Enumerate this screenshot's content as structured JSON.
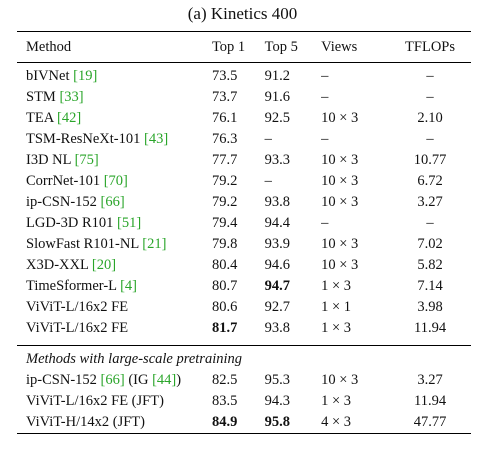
{
  "caption": "(a) Kinetics 400",
  "columns": [
    "Method",
    "Top 1",
    "Top 5",
    "Views",
    "TFLOPs"
  ],
  "rows": [
    {
      "name": "bIVNet",
      "ref": "[19]",
      "top1": "73.5",
      "top5": "91.2",
      "views": "–",
      "tflops": "–"
    },
    {
      "name": "STM",
      "ref": "[33]",
      "top1": "73.7",
      "top5": "91.6",
      "views": "–",
      "tflops": "–"
    },
    {
      "name": "TEA",
      "ref": "[42]",
      "top1": "76.1",
      "top5": "92.5",
      "views": "10 × 3",
      "tflops": "2.10"
    },
    {
      "name": "TSM-ResNeXt-101",
      "ref": "[43]",
      "top1": "76.3",
      "top5": "–",
      "views": "–",
      "tflops": "–"
    },
    {
      "name": "I3D NL",
      "ref": "[75]",
      "top1": "77.7",
      "top5": "93.3",
      "views": "10 × 3",
      "tflops": "10.77"
    },
    {
      "name": "CorrNet-101",
      "ref": "[70]",
      "top1": "79.2",
      "top5": "–",
      "views": "10 × 3",
      "tflops": "6.72"
    },
    {
      "name": "ip-CSN-152",
      "ref": "[66]",
      "top1": "79.2",
      "top5": "93.8",
      "views": "10 × 3",
      "tflops": "3.27"
    },
    {
      "name": "LGD-3D R101",
      "ref": "[51]",
      "top1": "79.4",
      "top5": "94.4",
      "views": "–",
      "tflops": "–"
    },
    {
      "name": "SlowFast R101-NL",
      "ref": "[21]",
      "top1": "79.8",
      "top5": "93.9",
      "views": "10 × 3",
      "tflops": "7.02"
    },
    {
      "name": "X3D-XXL",
      "ref": "[20]",
      "top1": "80.4",
      "top5": "94.6",
      "views": "10 × 3",
      "tflops": "5.82"
    },
    {
      "name": "TimeSformer-L",
      "ref": "[4]",
      "top1": "80.7",
      "top5": "94.7",
      "views": "1 × 3",
      "tflops": "7.14"
    },
    {
      "name": "ViViT-L/16x2 FE",
      "ref": "",
      "top1": "80.6",
      "top5": "92.7",
      "views": "1 × 1",
      "tflops": "3.98"
    },
    {
      "name": "ViViT-L/16x2 FE",
      "ref": "",
      "top1": "81.7",
      "top5": "93.8",
      "views": "1 × 3",
      "tflops": "11.94"
    }
  ],
  "pretrain_label": "Methods with large-scale pretraining",
  "pretrain_rows": [
    {
      "name": "ip-CSN-152",
      "ref": "[66]",
      "extra_pre": " (IG ",
      "extra_ref": "[44]",
      "extra_post": ")",
      "top1": "82.5",
      "top5": "95.3",
      "views": "10 × 3",
      "tflops": "3.27"
    },
    {
      "name": "ViViT-L/16x2 FE (JFT)",
      "ref": "",
      "top1": "83.5",
      "top5": "94.3",
      "views": "1 × 3",
      "tflops": "11.94"
    },
    {
      "name": "ViViT-H/14x2 (JFT)",
      "ref": "",
      "top1": "84.9",
      "top5": "95.8",
      "views": "4 × 3",
      "tflops": "47.77"
    }
  ]
}
